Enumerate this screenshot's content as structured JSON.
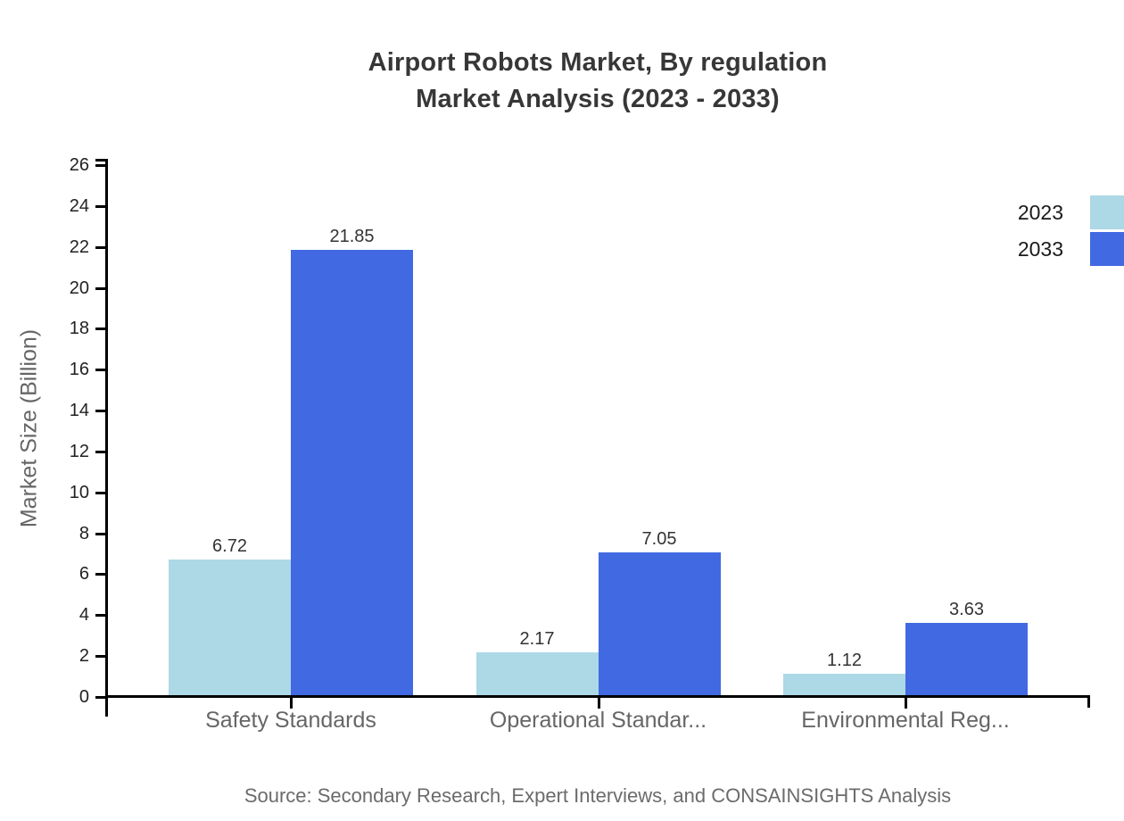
{
  "title": {
    "line1": "Airport Robots Market, By regulation",
    "line2": "Market Analysis (2023 - 2033)"
  },
  "source_note": "Source: Secondary Research, Expert Interviews, and CONSAINSIGHTS Analysis",
  "chart_data": {
    "type": "bar",
    "title": "Airport Robots Market, By regulation Market Analysis (2023 - 2033)",
    "categories": [
      "Safety Standards",
      "Operational Standar...",
      "Environmental Reg..."
    ],
    "series": [
      {
        "name": "2023",
        "color": "#ADD8E6",
        "values": [
          6.72,
          2.17,
          1.12
        ]
      },
      {
        "name": "2033",
        "color": "#4169E1",
        "values": [
          21.85,
          7.05,
          3.63
        ]
      }
    ],
    "value_labels": [
      "6.72",
      "21.85",
      "2.17",
      "7.05",
      "1.12",
      "3.63"
    ],
    "xlabel": "",
    "ylabel": "Market Size (Billion)",
    "ylim": [
      0,
      26
    ],
    "ytick_step": 2,
    "grid": false,
    "legend_position": "top-right"
  },
  "colors": {
    "series_2023": "#ADD8E6",
    "series_2033": "#4169E1",
    "axis": "#000000",
    "title_text": "#373737",
    "tick_text": "#222222",
    "muted_text": "#666666"
  }
}
